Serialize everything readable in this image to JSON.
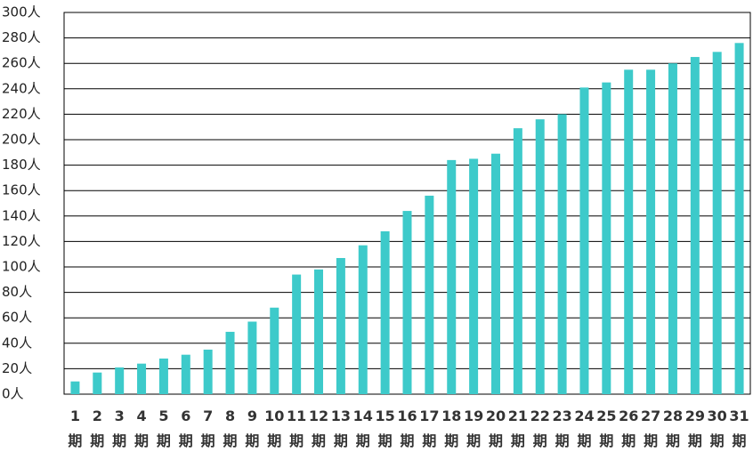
{
  "chart_data": {
    "type": "bar",
    "categories": [
      "1期",
      "2期",
      "3期",
      "4期",
      "5期",
      "6期",
      "7期",
      "8期",
      "9期",
      "10期",
      "11期",
      "12期",
      "13期",
      "14期",
      "15期",
      "16期",
      "17期",
      "18期",
      "19期",
      "20期",
      "21期",
      "22期",
      "23期",
      "24期",
      "25期",
      "26期",
      "27期",
      "28期",
      "29期",
      "30期",
      "31期"
    ],
    "values": [
      10,
      17,
      21,
      24,
      28,
      31,
      35,
      49,
      57,
      68,
      94,
      98,
      107,
      117,
      128,
      144,
      156,
      184,
      185,
      189,
      209,
      216,
      220,
      241,
      245,
      255,
      255,
      260,
      265,
      269,
      276
    ],
    "color": "#3dcaca",
    "ylim": [
      0,
      300
    ],
    "yticks": [
      {
        "value": 0,
        "label": "0人"
      },
      {
        "value": 20,
        "label": "20人"
      },
      {
        "value": 40,
        "label": "40人"
      },
      {
        "value": 60,
        "label": "60人"
      },
      {
        "value": 80,
        "label": "80人"
      },
      {
        "value": 100,
        "label": "100人"
      },
      {
        "value": 120,
        "label": "120人"
      },
      {
        "value": 140,
        "label": "140人"
      },
      {
        "value": 160,
        "label": "160人"
      },
      {
        "value": 180,
        "label": "180人"
      },
      {
        "value": 200,
        "label": "200人"
      },
      {
        "value": 220,
        "label": "220人"
      },
      {
        "value": 240,
        "label": "240人"
      },
      {
        "value": 260,
        "label": "260人"
      },
      {
        "value": 280,
        "label": "280人"
      },
      {
        "value": 300,
        "label": "300人"
      }
    ],
    "grid": true
  }
}
